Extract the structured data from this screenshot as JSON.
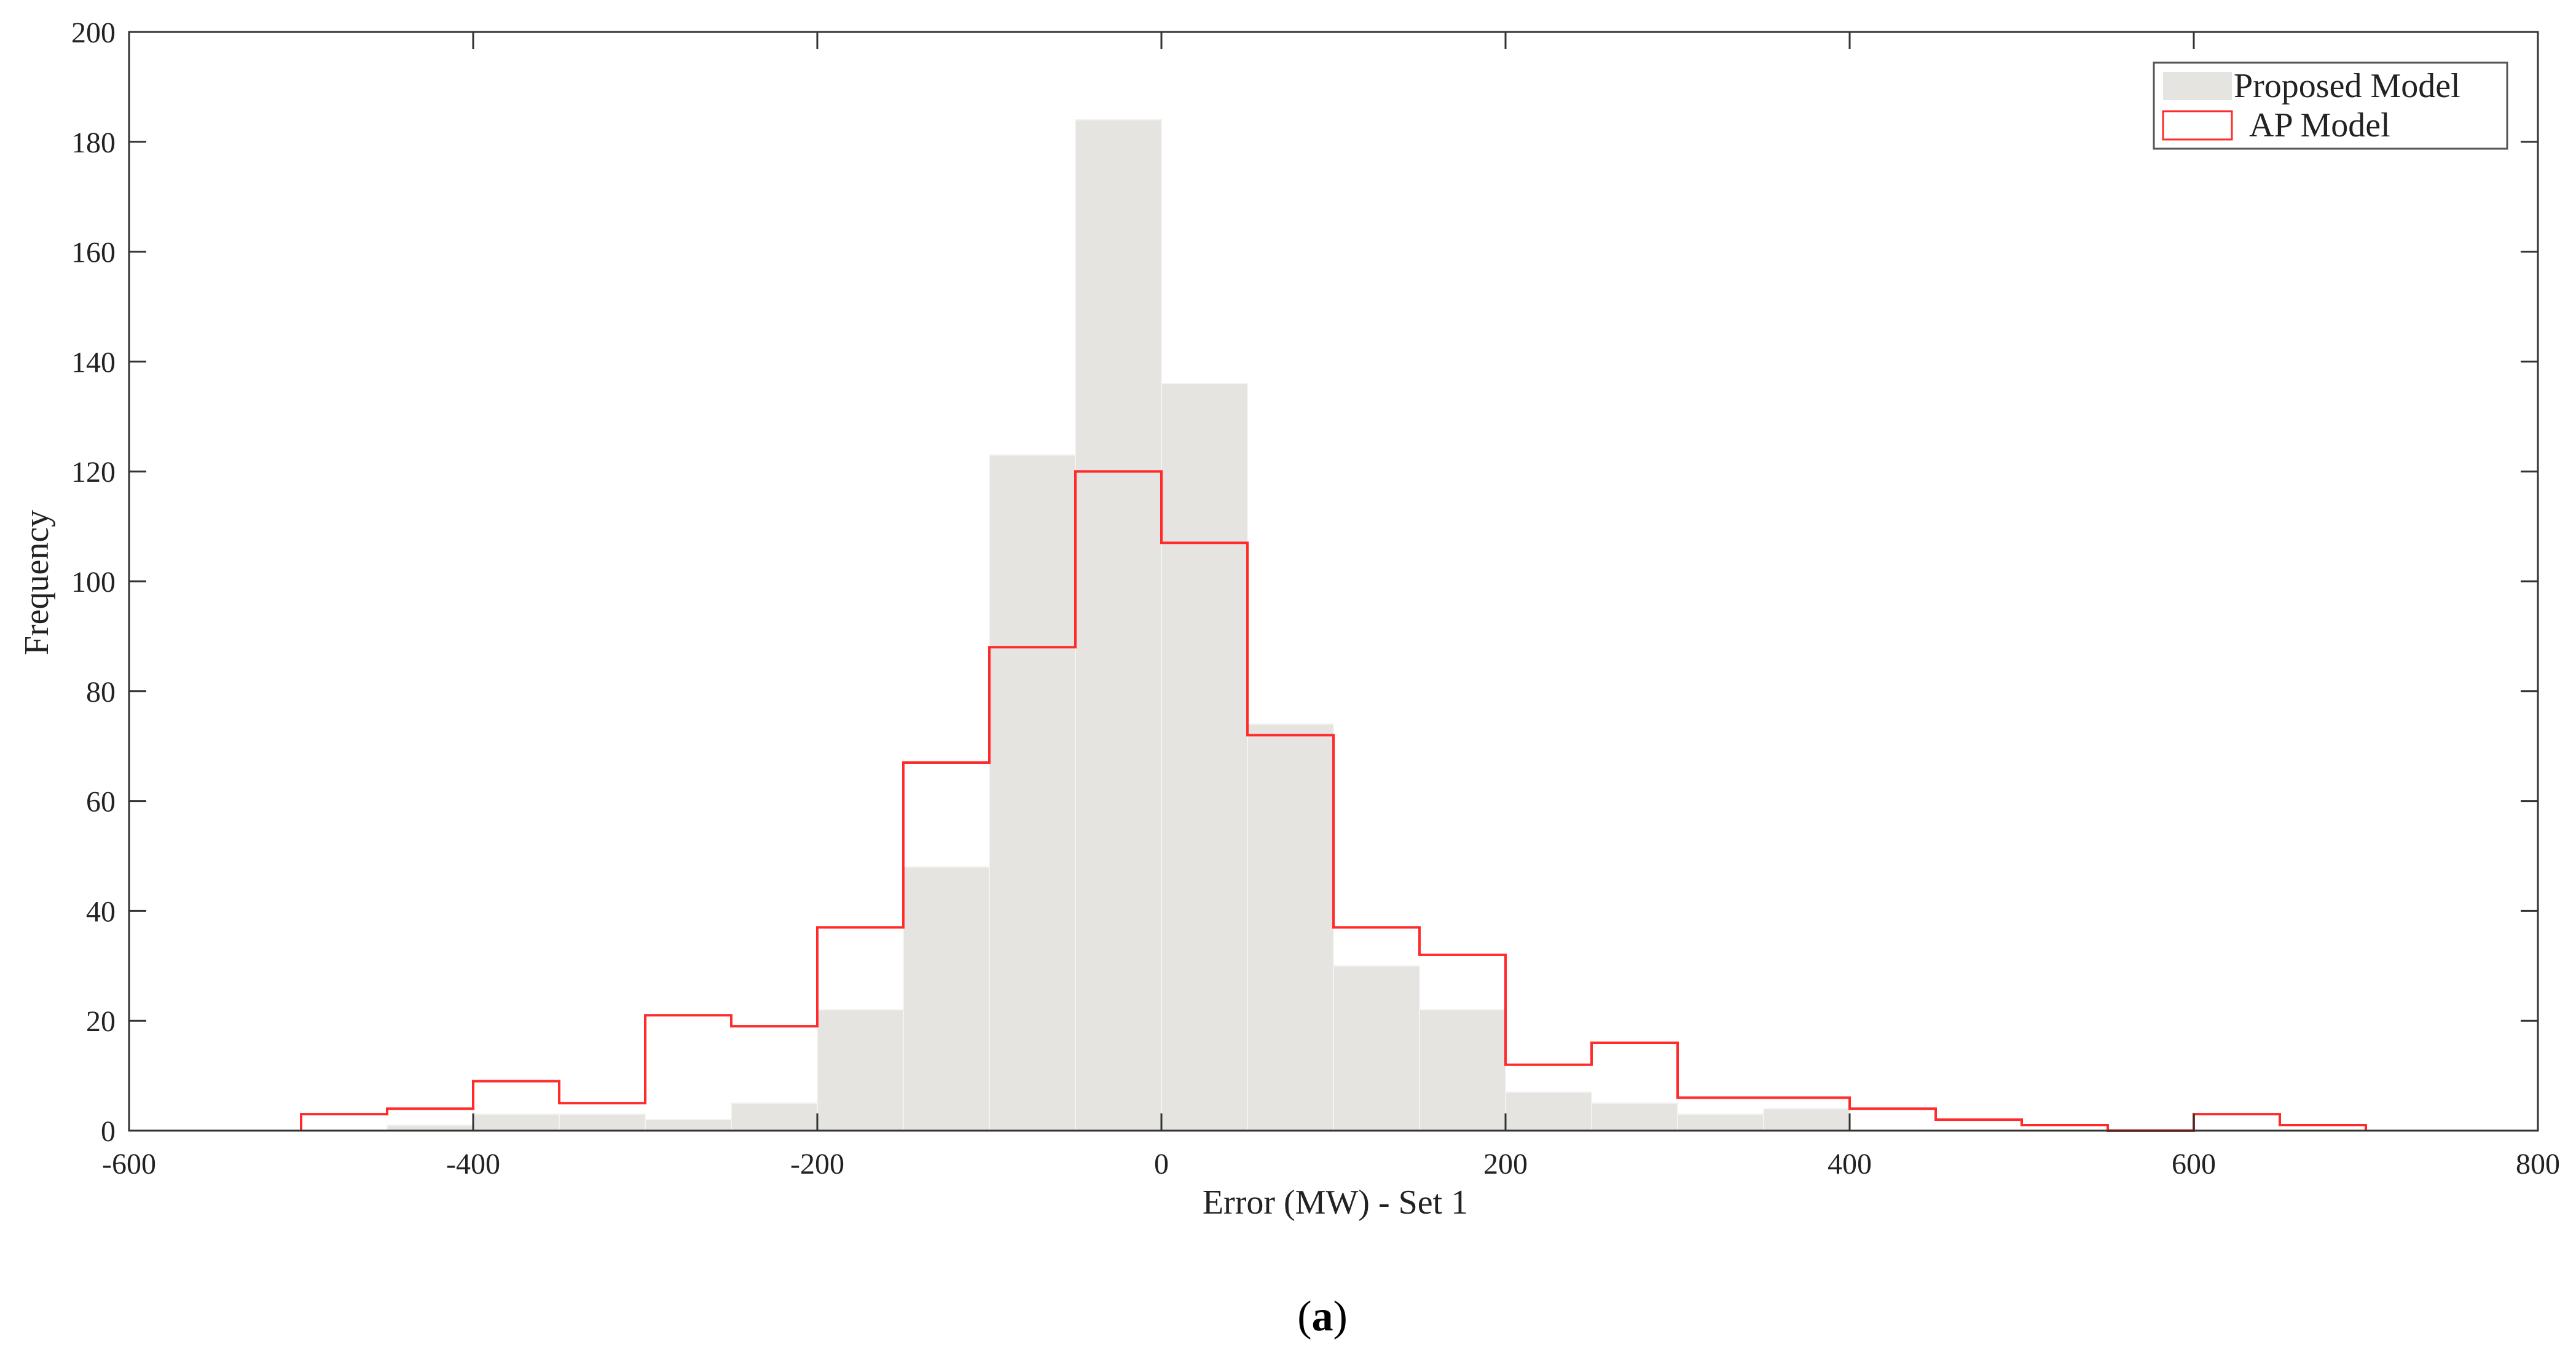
{
  "chart_data": {
    "type": "bar",
    "xlabel": "Error (MW) - Set 1",
    "ylabel": "Frequency",
    "xlim": [
      -600,
      800
    ],
    "ylim": [
      0,
      200
    ],
    "xticks": [
      -600,
      -400,
      -200,
      0,
      200,
      400,
      600,
      800
    ],
    "yticks": [
      0,
      20,
      40,
      60,
      80,
      100,
      120,
      140,
      160,
      180,
      200
    ],
    "grid": false,
    "legend_position": "top-right",
    "bin_width": 50,
    "series": [
      {
        "name": "Proposed Model",
        "style": "filled-bars",
        "color": "#e6e4e0",
        "bins": [
          {
            "x0": -450,
            "x1": -400,
            "value": 1
          },
          {
            "x0": -400,
            "x1": -350,
            "value": 3
          },
          {
            "x0": -350,
            "x1": -300,
            "value": 3
          },
          {
            "x0": -300,
            "x1": -250,
            "value": 2
          },
          {
            "x0": -250,
            "x1": -200,
            "value": 5
          },
          {
            "x0": -200,
            "x1": -150,
            "value": 22
          },
          {
            "x0": -150,
            "x1": -100,
            "value": 48
          },
          {
            "x0": -100,
            "x1": -50,
            "value": 123
          },
          {
            "x0": -50,
            "x1": 0,
            "value": 184
          },
          {
            "x0": 0,
            "x1": 50,
            "value": 136
          },
          {
            "x0": 50,
            "x1": 100,
            "value": 74
          },
          {
            "x0": 100,
            "x1": 150,
            "value": 30
          },
          {
            "x0": 150,
            "x1": 200,
            "value": 22
          },
          {
            "x0": 200,
            "x1": 250,
            "value": 7
          },
          {
            "x0": 250,
            "x1": 300,
            "value": 5
          },
          {
            "x0": 300,
            "x1": 350,
            "value": 3
          },
          {
            "x0": 350,
            "x1": 400,
            "value": 4
          }
        ]
      },
      {
        "name": "AP Model",
        "style": "outline-step",
        "color": "#ff2a2a",
        "bins": [
          {
            "x0": -500,
            "x1": -450,
            "value": 3
          },
          {
            "x0": -450,
            "x1": -400,
            "value": 4
          },
          {
            "x0": -400,
            "x1": -350,
            "value": 9
          },
          {
            "x0": -350,
            "x1": -300,
            "value": 5
          },
          {
            "x0": -300,
            "x1": -250,
            "value": 21
          },
          {
            "x0": -250,
            "x1": -200,
            "value": 19
          },
          {
            "x0": -200,
            "x1": -150,
            "value": 37
          },
          {
            "x0": -150,
            "x1": -100,
            "value": 67
          },
          {
            "x0": -100,
            "x1": -50,
            "value": 88
          },
          {
            "x0": -50,
            "x1": 0,
            "value": 120
          },
          {
            "x0": 0,
            "x1": 50,
            "value": 107
          },
          {
            "x0": 50,
            "x1": 100,
            "value": 72
          },
          {
            "x0": 100,
            "x1": 150,
            "value": 37
          },
          {
            "x0": 150,
            "x1": 200,
            "value": 32
          },
          {
            "x0": 200,
            "x1": 250,
            "value": 12
          },
          {
            "x0": 250,
            "x1": 300,
            "value": 16
          },
          {
            "x0": 300,
            "x1": 350,
            "value": 6
          },
          {
            "x0": 350,
            "x1": 400,
            "value": 6
          },
          {
            "x0": 400,
            "x1": 450,
            "value": 4
          },
          {
            "x0": 450,
            "x1": 500,
            "value": 2
          },
          {
            "x0": 500,
            "x1": 550,
            "value": 1
          },
          {
            "x0": 550,
            "x1": 600,
            "value": 0
          },
          {
            "x0": 600,
            "x1": 650,
            "value": 3
          },
          {
            "x0": 650,
            "x1": 700,
            "value": 1
          }
        ]
      }
    ]
  },
  "caption": {
    "open": "(",
    "letter": "a",
    "close": ")"
  }
}
